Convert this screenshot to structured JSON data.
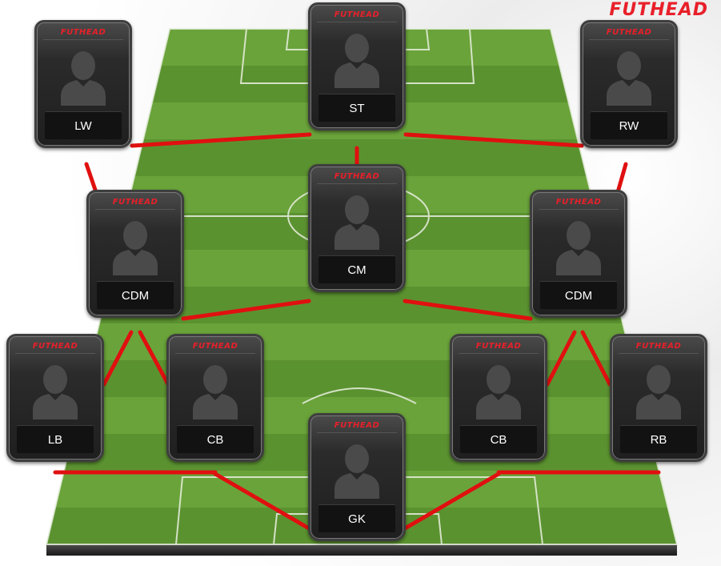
{
  "brand": {
    "logo_text": "FUTHEAD",
    "accent_color": "#e8202a"
  },
  "cards": [
    {
      "id": "lw",
      "position": "LW",
      "brand_text": "FUTHEAD"
    },
    {
      "id": "st",
      "position": "ST",
      "brand_text": "FUTHEAD"
    },
    {
      "id": "rw",
      "position": "RW",
      "brand_text": "FUTHEAD"
    },
    {
      "id": "cdm1",
      "position": "CDM",
      "brand_text": "FUTHEAD"
    },
    {
      "id": "cm",
      "position": "CM",
      "brand_text": "FUTHEAD"
    },
    {
      "id": "cdm2",
      "position": "CDM",
      "brand_text": "FUTHEAD"
    },
    {
      "id": "lb",
      "position": "LB",
      "brand_text": "FUTHEAD"
    },
    {
      "id": "cb1",
      "position": "CB",
      "brand_text": "FUTHEAD"
    },
    {
      "id": "cb2",
      "position": "CB",
      "brand_text": "FUTHEAD"
    },
    {
      "id": "rb",
      "position": "RB",
      "brand_text": "FUTHEAD"
    },
    {
      "id": "gk",
      "position": "GK",
      "brand_text": "FUTHEAD"
    }
  ],
  "links": [
    [
      "lw",
      "st"
    ],
    [
      "st",
      "rw"
    ],
    [
      "lw",
      "cdm1"
    ],
    [
      "rw",
      "cdm2"
    ],
    [
      "st",
      "cm"
    ],
    [
      "cdm1",
      "cm"
    ],
    [
      "cm",
      "cdm2"
    ],
    [
      "cdm1",
      "lb"
    ],
    [
      "cdm1",
      "cb1"
    ],
    [
      "cdm2",
      "cb2"
    ],
    [
      "cdm2",
      "rb"
    ],
    [
      "lb",
      "cb1"
    ],
    [
      "cb1",
      "gk"
    ],
    [
      "gk",
      "cb2"
    ],
    [
      "cb2",
      "rb"
    ]
  ],
  "colors": {
    "link": "#e01010",
    "card_bg": "#222222",
    "pitch_light": "#6aa33a",
    "pitch_dark": "#5b9230"
  }
}
